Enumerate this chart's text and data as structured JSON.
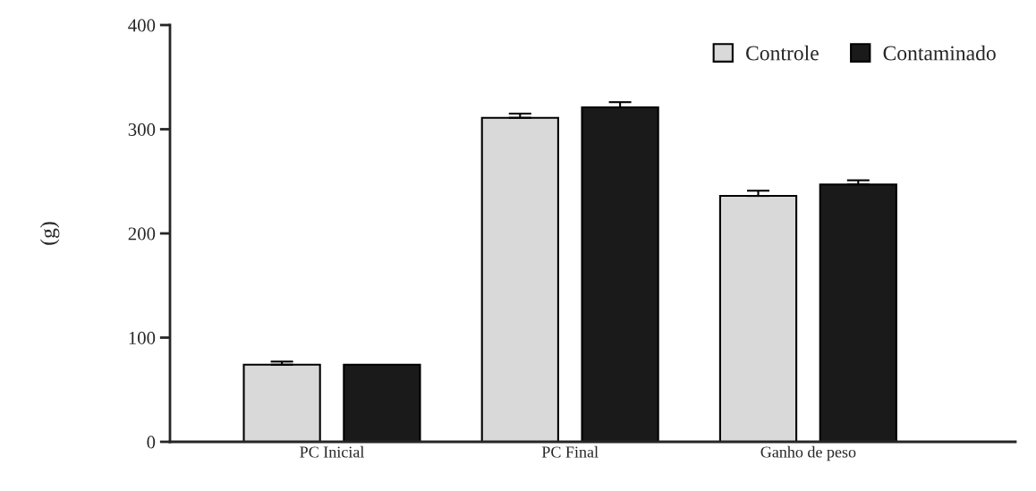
{
  "chart_data": {
    "type": "bar",
    "ylabel": "(g)",
    "categories": [
      "PC Inicial",
      "PC Final",
      "Ganho de peso"
    ],
    "series": [
      {
        "name": "Controle",
        "color": "#d9d9d9",
        "values": [
          74,
          311,
          236
        ],
        "errors": [
          3,
          4,
          5
        ]
      },
      {
        "name": "Contaminado",
        "color": "#1a1a1a",
        "values": [
          74,
          321,
          247
        ],
        "errors": [
          null,
          5,
          4
        ]
      }
    ],
    "ylim": [
      0,
      400
    ],
    "yticks": [
      0,
      100,
      200,
      300,
      400
    ],
    "grid": false,
    "legend": "top right"
  }
}
